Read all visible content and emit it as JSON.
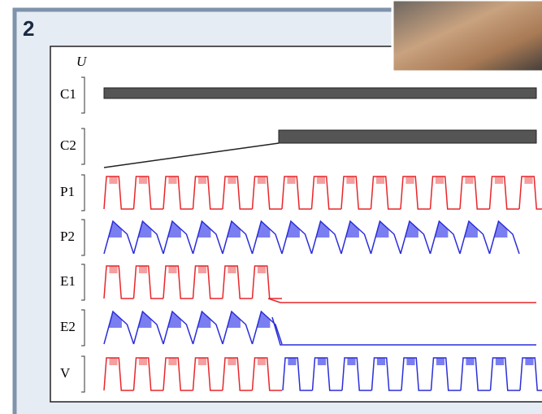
{
  "panel_label": "2",
  "axis_label": "U",
  "rows": [
    "C1",
    "C2",
    "P1",
    "P2",
    "E1",
    "E2",
    "V"
  ]
}
